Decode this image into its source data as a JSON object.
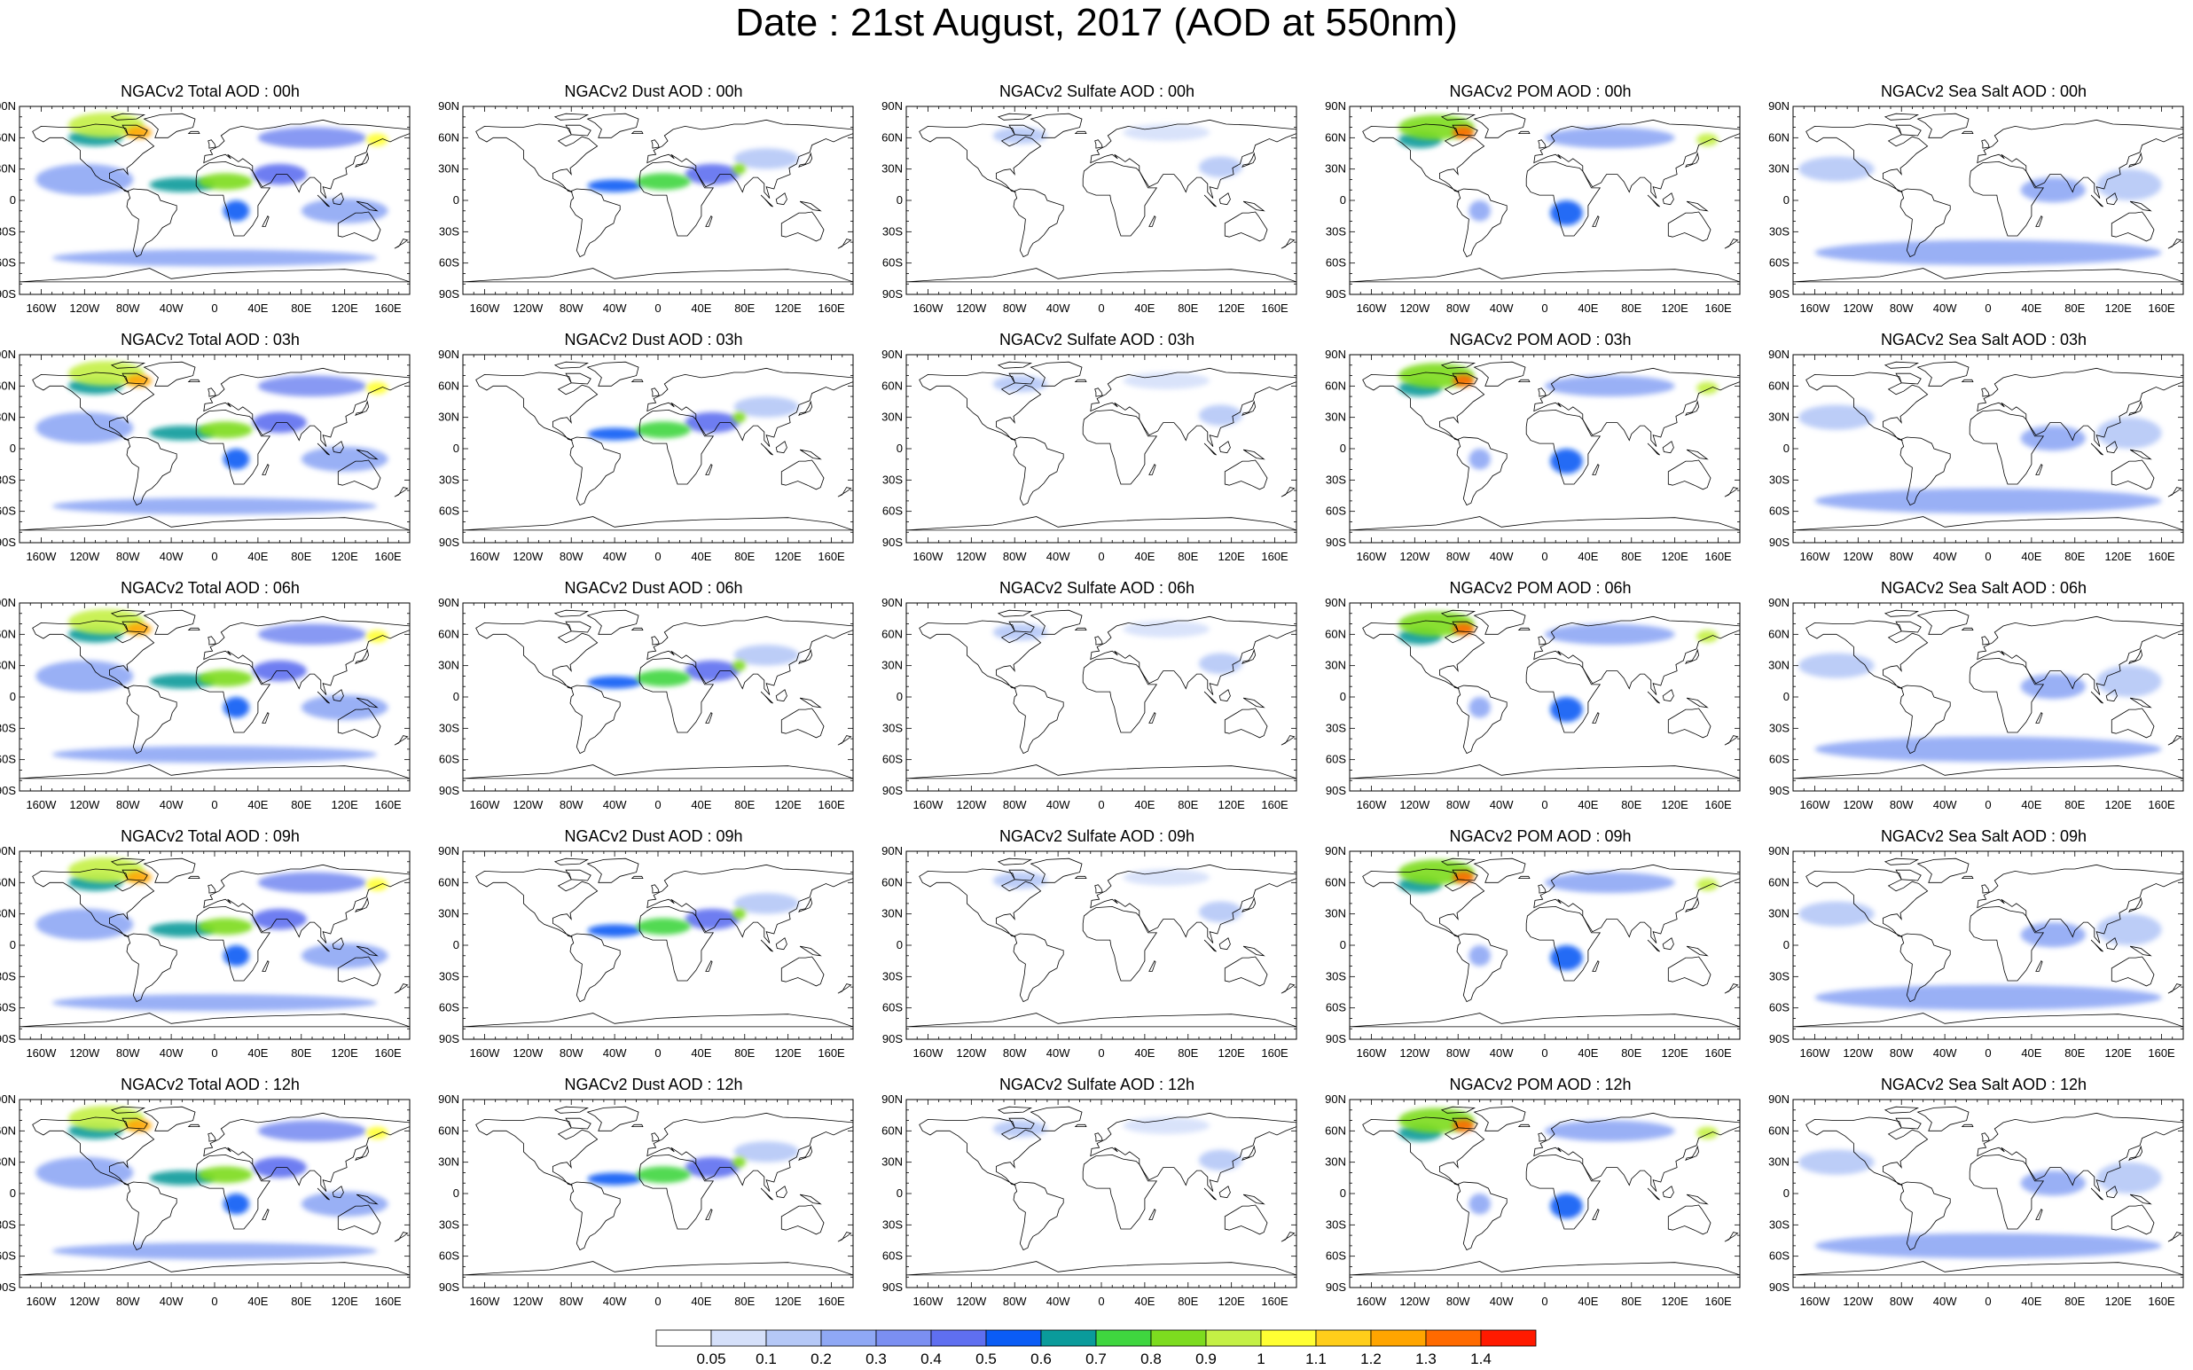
{
  "title": "Date : 21st August, 2017 (AOD at 550nm)",
  "panels": [
    {
      "title": "NGACv2 Total AOD : 00h",
      "field": "total"
    },
    {
      "title": "NGACv2 Dust AOD : 00h",
      "field": "dust"
    },
    {
      "title": "NGACv2 Sulfate AOD : 00h",
      "field": "sulfate"
    },
    {
      "title": "NGACv2 POM AOD : 00h",
      "field": "pom"
    },
    {
      "title": "NGACv2 Sea Salt AOD : 00h",
      "field": "seasalt"
    },
    {
      "title": "NGACv2 Total AOD : 03h",
      "field": "total"
    },
    {
      "title": "NGACv2 Dust AOD : 03h",
      "field": "dust"
    },
    {
      "title": "NGACv2 Sulfate AOD : 03h",
      "field": "sulfate"
    },
    {
      "title": "NGACv2 POM AOD : 03h",
      "field": "pom"
    },
    {
      "title": "NGACv2 Sea Salt AOD : 03h",
      "field": "seasalt"
    },
    {
      "title": "NGACv2 Total AOD : 06h",
      "field": "total"
    },
    {
      "title": "NGACv2 Dust AOD : 06h",
      "field": "dust"
    },
    {
      "title": "NGACv2 Sulfate AOD : 06h",
      "field": "sulfate"
    },
    {
      "title": "NGACv2 POM AOD : 06h",
      "field": "pom"
    },
    {
      "title": "NGACv2 Sea Salt AOD : 06h",
      "field": "seasalt"
    },
    {
      "title": "NGACv2 Total AOD : 09h",
      "field": "total"
    },
    {
      "title": "NGACv2 Dust AOD : 09h",
      "field": "dust"
    },
    {
      "title": "NGACv2 Sulfate AOD : 09h",
      "field": "sulfate"
    },
    {
      "title": "NGACv2 POM AOD : 09h",
      "field": "pom"
    },
    {
      "title": "NGACv2 Sea Salt  AOD : 09h",
      "field": "seasalt"
    },
    {
      "title": "NGACv2 Total AOD  : 12h",
      "field": "total"
    },
    {
      "title": "NGACv2 Dust AOD : 12h",
      "field": "dust"
    },
    {
      "title": "NGACv2 Sulfate AOD : 12h",
      "field": "sulfate"
    },
    {
      "title": "NGACv2 POM  AOD : 12h",
      "field": "pom"
    },
    {
      "title": "NGACv2 Sea Salt  AOD : 12h",
      "field": "seasalt"
    }
  ],
  "lat_ticks": [
    {
      "value": 90,
      "label": "90N"
    },
    {
      "value": 60,
      "label": "60N"
    },
    {
      "value": 30,
      "label": "30N"
    },
    {
      "value": 0,
      "label": "0"
    },
    {
      "value": -30,
      "label": "30S"
    },
    {
      "value": -60,
      "label": "60S"
    },
    {
      "value": -90,
      "label": "90S"
    }
  ],
  "lon_ticks": [
    {
      "value": -160,
      "label": "160W"
    },
    {
      "value": -120,
      "label": "120W"
    },
    {
      "value": -80,
      "label": "80W"
    },
    {
      "value": -40,
      "label": "40W"
    },
    {
      "value": 0,
      "label": "0"
    },
    {
      "value": 40,
      "label": "40E"
    },
    {
      "value": 80,
      "label": "80E"
    },
    {
      "value": 120,
      "label": "120E"
    },
    {
      "value": 160,
      "label": "160E"
    }
  ],
  "lon_range": [
    -180,
    180
  ],
  "lat_range": [
    -90,
    90
  ],
  "colorbar": {
    "colors": [
      "#ffffff",
      "#d5e0fa",
      "#b5c8f7",
      "#8fa8f5",
      "#7b8ff2",
      "#5f6ff0",
      "#0a5cf5",
      "#0a9b9b",
      "#3fd63f",
      "#7ddc1f",
      "#c4f045",
      "#ffff33",
      "#ffce1a",
      "#ffa500",
      "#ff6a00",
      "#ff1a00"
    ],
    "labels": [
      "0.05",
      "0.1",
      "0.2",
      "0.3",
      "0.4",
      "0.5",
      "0.6",
      "0.7",
      "0.8",
      "0.9",
      "1",
      "1.1",
      "1.2",
      "1.3",
      "1.4"
    ]
  },
  "fields": {
    "total": [
      {
        "lon": -100,
        "lat": 72,
        "v": 0.9,
        "rx": 35,
        "ry": 12
      },
      {
        "lon": -70,
        "lat": 65,
        "v": 1.2,
        "rx": 12,
        "ry": 6
      },
      {
        "lon": -110,
        "lat": 60,
        "v": 0.6,
        "rx": 25,
        "ry": 8
      },
      {
        "lon": -30,
        "lat": 15,
        "v": 0.6,
        "rx": 30,
        "ry": 7
      },
      {
        "lon": 10,
        "lat": 18,
        "v": 0.8,
        "rx": 25,
        "ry": 8
      },
      {
        "lon": 20,
        "lat": -10,
        "v": 0.5,
        "rx": 12,
        "ry": 10
      },
      {
        "lon": 60,
        "lat": 25,
        "v": 0.45,
        "rx": 25,
        "ry": 10
      },
      {
        "lon": 150,
        "lat": 58,
        "v": 1.0,
        "rx": 10,
        "ry": 6
      },
      {
        "lon": 90,
        "lat": 60,
        "v": 0.3,
        "rx": 50,
        "ry": 10
      },
      {
        "lon": 0,
        "lat": -55,
        "v": 0.25,
        "rx": 150,
        "ry": 8
      },
      {
        "lon": -120,
        "lat": 20,
        "v": 0.2,
        "rx": 45,
        "ry": 15
      },
      {
        "lon": 120,
        "lat": -10,
        "v": 0.2,
        "rx": 40,
        "ry": 12
      }
    ],
    "dust": [
      {
        "lon": -40,
        "lat": 14,
        "v": 0.5,
        "rx": 25,
        "ry": 6
      },
      {
        "lon": 5,
        "lat": 18,
        "v": 0.7,
        "rx": 25,
        "ry": 8
      },
      {
        "lon": 50,
        "lat": 25,
        "v": 0.4,
        "rx": 25,
        "ry": 10
      },
      {
        "lon": 75,
        "lat": 30,
        "v": 0.8,
        "rx": 6,
        "ry": 5
      },
      {
        "lon": 100,
        "lat": 40,
        "v": 0.15,
        "rx": 30,
        "ry": 10
      }
    ],
    "sulfate": [
      {
        "lon": -75,
        "lat": 62,
        "v": 0.15,
        "rx": 25,
        "ry": 8
      },
      {
        "lon": 110,
        "lat": 32,
        "v": 0.12,
        "rx": 20,
        "ry": 10
      },
      {
        "lon": 60,
        "lat": 65,
        "v": 0.08,
        "rx": 40,
        "ry": 8
      }
    ],
    "pom": [
      {
        "lon": -100,
        "lat": 70,
        "v": 0.8,
        "rx": 35,
        "ry": 12
      },
      {
        "lon": -75,
        "lat": 65,
        "v": 1.3,
        "rx": 10,
        "ry": 6
      },
      {
        "lon": -115,
        "lat": 58,
        "v": 0.6,
        "rx": 20,
        "ry": 8
      },
      {
        "lon": 20,
        "lat": -12,
        "v": 0.5,
        "rx": 15,
        "ry": 12
      },
      {
        "lon": 150,
        "lat": 58,
        "v": 0.9,
        "rx": 10,
        "ry": 6
      },
      {
        "lon": 60,
        "lat": 60,
        "v": 0.2,
        "rx": 60,
        "ry": 10
      },
      {
        "lon": -60,
        "lat": -10,
        "v": 0.2,
        "rx": 10,
        "ry": 10
      }
    ],
    "seasalt": [
      {
        "lon": 0,
        "lat": -50,
        "v": 0.2,
        "rx": 160,
        "ry": 12
      },
      {
        "lon": 60,
        "lat": 10,
        "v": 0.2,
        "rx": 30,
        "ry": 12
      },
      {
        "lon": -140,
        "lat": 30,
        "v": 0.12,
        "rx": 35,
        "ry": 12
      },
      {
        "lon": 130,
        "lat": 15,
        "v": 0.15,
        "rx": 30,
        "ry": 15
      }
    ]
  }
}
